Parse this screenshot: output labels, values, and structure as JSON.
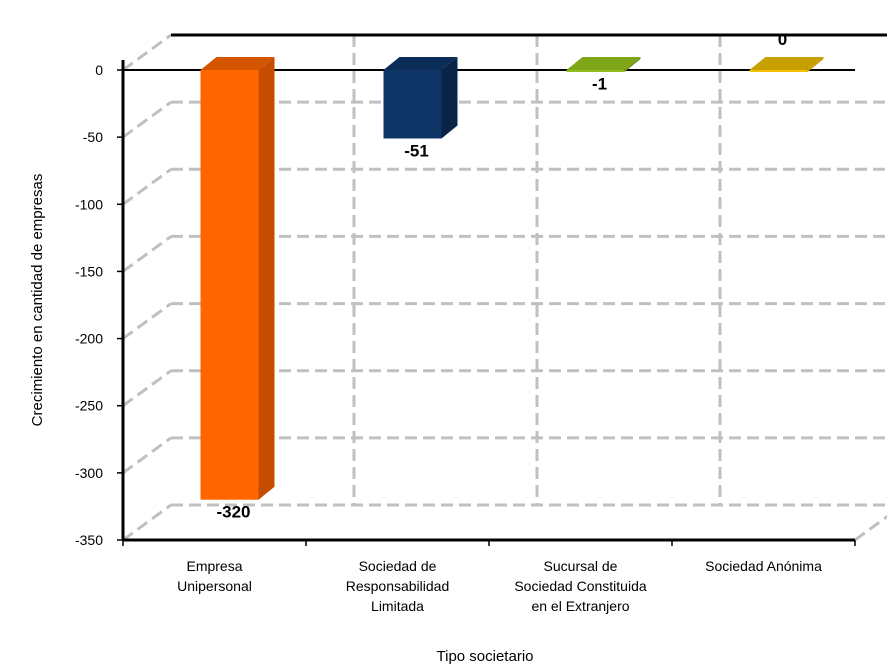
{
  "chart_data": {
    "type": "bar",
    "title": "",
    "xlabel": "Tipo societario",
    "ylabel": "Crecimiento en cantidad de empresas",
    "ylim": [
      -350,
      0
    ],
    "yticks": [
      0,
      -50,
      -100,
      -150,
      -200,
      -250,
      -300,
      -350
    ],
    "grid": true,
    "style": "3d-column",
    "categories": [
      [
        "Empresa",
        "Unipersonal"
      ],
      [
        "Sociedad de",
        "Responsabilidad",
        "Limitada"
      ],
      [
        "Sucursal de",
        "Sociedad Constituida",
        "en el Extranjero"
      ],
      [
        "Sociedad Anónima"
      ]
    ],
    "values": [
      -320,
      -51,
      -1,
      0
    ],
    "data_labels": [
      "-320",
      "-51",
      "-1",
      "0"
    ],
    "colors": [
      {
        "front": "#ff6600",
        "side": "#c44d00",
        "top": "#d45500"
      },
      {
        "front": "#0f3566",
        "side": "#082447",
        "top": "#0c2d57"
      },
      {
        "front": "#8fbf1f",
        "side": "#6a8f15",
        "top": "#7ea617"
      },
      {
        "front": "#f5c000",
        "side": "#c79b00",
        "top": "#c7a000"
      }
    ]
  }
}
